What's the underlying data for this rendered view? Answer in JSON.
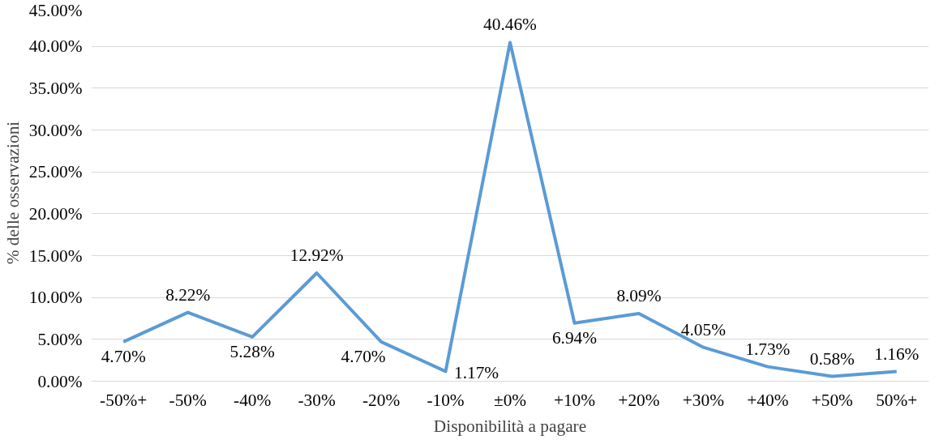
{
  "chart_data": {
    "type": "line",
    "xlabel": "Disponibilità a pagare",
    "ylabel": "% delle osservazioni",
    "categories": [
      "-50%+",
      "-50%",
      "-40%",
      "-30%",
      "-20%",
      "-10%",
      "±0%",
      "+10%",
      "+20%",
      "+30%",
      "+40%",
      "+50%",
      "50%+"
    ],
    "series": [
      {
        "color": "#5b9bd5",
        "values": [
          4.7,
          8.22,
          5.28,
          12.92,
          4.7,
          1.17,
          40.46,
          6.94,
          8.09,
          4.05,
          1.73,
          0.58,
          1.16
        ],
        "value_labels": [
          "4.70%",
          "8.22%",
          "5.28%",
          "12.92%",
          "4.70%",
          "1.17%",
          "40.46%",
          "6.94%",
          "8.09%",
          "4.05%",
          "1.73%",
          "0.58%",
          "1.16%"
        ]
      }
    ],
    "ylim": [
      0,
      45
    ],
    "yticks": [
      {
        "value": 0,
        "label": "0.00%"
      },
      {
        "value": 5,
        "label": "5.00%"
      },
      {
        "value": 10,
        "label": "10.00%"
      },
      {
        "value": 15,
        "label": "15.00%"
      },
      {
        "value": 20,
        "label": "20.00%"
      },
      {
        "value": 25,
        "label": "25.00%"
      },
      {
        "value": 30,
        "label": "30.00%"
      },
      {
        "value": 35,
        "label": "35.00%"
      },
      {
        "value": 40,
        "label": "40.00%"
      },
      {
        "value": 45,
        "label": "45.00%"
      }
    ],
    "grid": "y",
    "marker": "none",
    "line_style": "solid"
  }
}
